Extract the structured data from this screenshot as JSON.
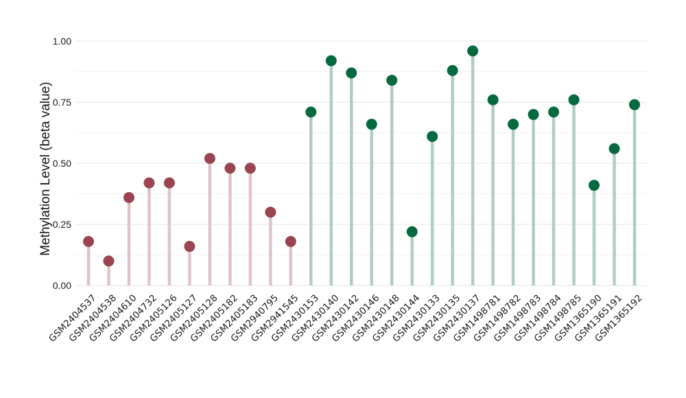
{
  "chart_data": {
    "type": "lollipop",
    "ylabel": "Methylation Level (beta value)",
    "xlabel": "",
    "ylim": [
      0,
      1
    ],
    "yticks": [
      0,
      0.25,
      0.5,
      0.75,
      1
    ],
    "ytick_labels": [
      "0.00",
      "0.25",
      "0.50",
      "0.75",
      "1.00"
    ],
    "grid": true,
    "colors": {
      "group_a_point": "#9b4451",
      "group_a_stem": "#dec3c9",
      "group_b_point": "#05693f",
      "group_b_stem": "#afcdc2",
      "grid_major": "#e6e6e6",
      "grid_minor": "#f3f3f3"
    },
    "categories": [
      "GSM2404537",
      "GSM2404538",
      "GSM2404610",
      "GSM2404732",
      "GSM2405126",
      "GSM2405127",
      "GSM2405128",
      "GSM2405182",
      "GSM2405183",
      "GSM2940795",
      "GSM2941545",
      "GSM2430153",
      "GSM2430140",
      "GSM2430142",
      "GSM2430146",
      "GSM2430148",
      "GSM2430144",
      "GSM2430133",
      "GSM2430135",
      "GSM2430137",
      "GSM1498781",
      "GSM1498782",
      "GSM1498783",
      "GSM1498784",
      "GSM1498785",
      "GSM1365190",
      "GSM1365191",
      "GSM1365192"
    ],
    "values": [
      0.18,
      0.1,
      0.36,
      0.42,
      0.42,
      0.16,
      0.52,
      0.48,
      0.48,
      0.3,
      0.18,
      0.71,
      0.92,
      0.87,
      0.66,
      0.84,
      0.22,
      0.61,
      0.88,
      0.96,
      0.76,
      0.66,
      0.7,
      0.71,
      0.76,
      0.41,
      0.56,
      0.74
    ],
    "groups": [
      "a",
      "a",
      "a",
      "a",
      "a",
      "a",
      "a",
      "a",
      "a",
      "a",
      "a",
      "b",
      "b",
      "b",
      "b",
      "b",
      "b",
      "b",
      "b",
      "b",
      "b",
      "b",
      "b",
      "b",
      "b",
      "b",
      "b",
      "b"
    ]
  }
}
